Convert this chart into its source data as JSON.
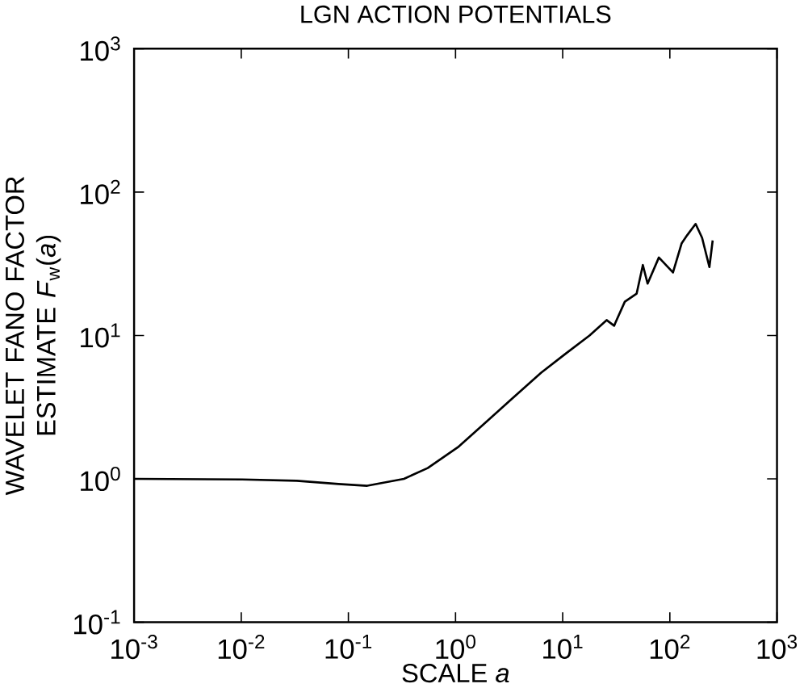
{
  "chart_data": {
    "type": "line",
    "title": "LGN ACTION POTENTIALS",
    "xlabel": "SCALE *a*",
    "ylabel": "WAVELET FANO FACTOR ESTIMATE  *F*$_{w}$(*a*)",
    "log": "xy",
    "xlim": [
      0.001,
      1000
    ],
    "ylim": [
      0.1,
      1000
    ],
    "xticks": [
      {
        "value": 0.001,
        "label": "10$^{-3}$"
      },
      {
        "value": 0.01,
        "label": "10$^{-2}$"
      },
      {
        "value": 0.1,
        "label": "10$^{-1}$"
      },
      {
        "value": 1,
        "label": "10$^{0}$"
      },
      {
        "value": 10,
        "label": "10$^{1}$"
      },
      {
        "value": 100,
        "label": "10$^{2}$"
      },
      {
        "value": 1000,
        "label": "10$^{3}$"
      }
    ],
    "yticks": [
      {
        "value": 0.1,
        "label": "10$^{-1}$"
      },
      {
        "value": 1,
        "label": "10$^{0}$"
      },
      {
        "value": 10,
        "label": "10$^{1}$"
      },
      {
        "value": 100,
        "label": "10$^{2}$"
      },
      {
        "value": 1000,
        "label": "10$^{3}$"
      }
    ],
    "marker": "none",
    "line_style": "solid",
    "series": [
      {
        "color": "#000000",
        "x": [
          0.001,
          0.0102,
          0.033,
          0.081,
          0.15,
          0.33,
          0.55,
          1.05,
          2.0,
          3.3,
          6.3,
          10.5,
          17.8,
          25.7,
          30.2,
          38,
          49,
          56,
          62,
          79,
          107,
          129,
          145,
          174,
          200,
          234,
          251
        ],
        "values": [
          1.0,
          0.99,
          0.97,
          0.92,
          0.895,
          1.0,
          1.19,
          1.66,
          2.55,
          3.58,
          5.5,
          7.4,
          10,
          12.8,
          11.7,
          17.2,
          19.6,
          31,
          23,
          35,
          27.5,
          44,
          50,
          60,
          48,
          30,
          46
        ]
      }
    ]
  }
}
